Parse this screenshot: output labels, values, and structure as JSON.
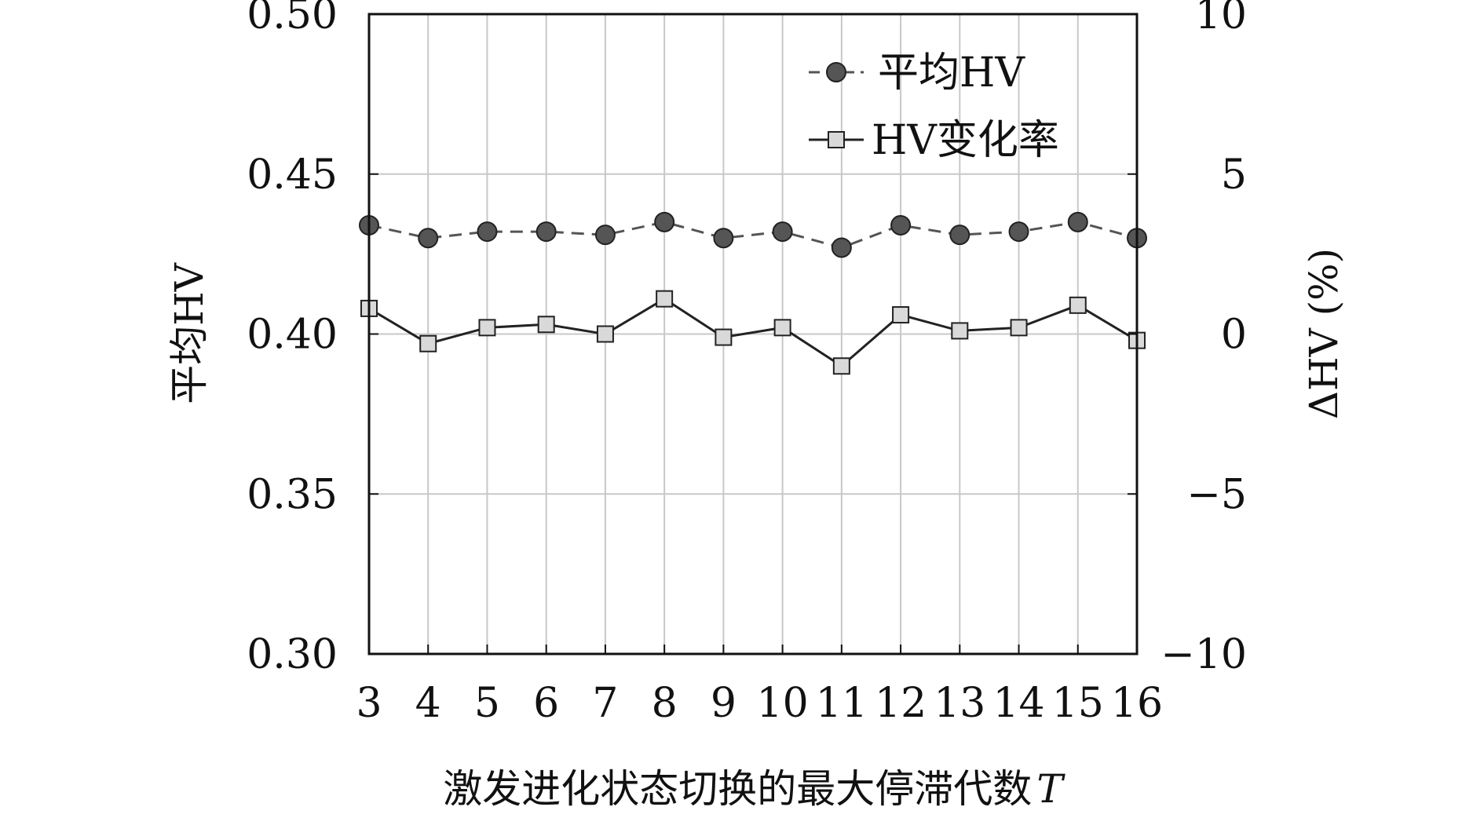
{
  "chart_data": {
    "type": "line",
    "x": [
      3,
      4,
      5,
      6,
      7,
      8,
      9,
      10,
      11,
      12,
      13,
      14,
      15,
      16
    ],
    "xlabel": "激发进化状态切换的最大停滞代数",
    "xlabel_var": "T",
    "ylabel_left": "平均HV",
    "ylabel_right": "ΔHV (%)",
    "ylim_left": [
      0.3,
      0.5
    ],
    "yticks_left": [
      "0.30",
      "0.35",
      "0.40",
      "0.45",
      "0.50"
    ],
    "ylim_right": [
      -10,
      10
    ],
    "yticks_right": [
      "−10",
      "−5",
      "0",
      "5",
      "10"
    ],
    "grid": true,
    "legend_position": "top-right",
    "series": [
      {
        "name": "平均HV",
        "axis": "left",
        "marker": "circle",
        "line_style": "dashed",
        "color": "#555555",
        "values": [
          0.434,
          0.43,
          0.432,
          0.432,
          0.431,
          0.435,
          0.43,
          0.432,
          0.427,
          0.434,
          0.431,
          0.432,
          0.435,
          0.43
        ]
      },
      {
        "name": "HV变化率",
        "axis": "right",
        "marker": "square",
        "line_style": "solid",
        "color": "#222222",
        "marker_fill": "#d9d9d9",
        "values": [
          0.8,
          -0.3,
          0.2,
          0.3,
          0.0,
          1.1,
          -0.1,
          0.2,
          -1.0,
          0.6,
          0.1,
          0.2,
          0.9,
          -0.2
        ]
      }
    ]
  }
}
